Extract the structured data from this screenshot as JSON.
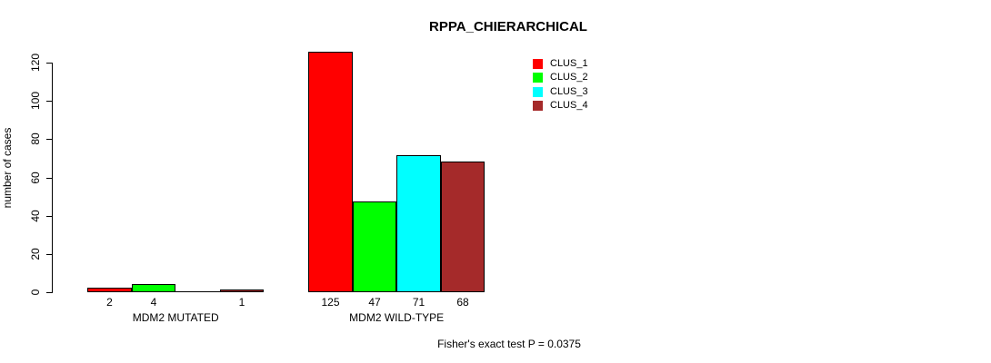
{
  "chart_data": {
    "type": "bar",
    "title": "RPPA_CHIERARCHICAL",
    "ylabel": "number of cases",
    "xlabel": "",
    "footer": "Fisher's exact test P = 0.0375",
    "ylim": [
      0,
      120
    ],
    "yticks": [
      0,
      20,
      40,
      60,
      80,
      100,
      120
    ],
    "grid": false,
    "legend_position": "inside-top-right",
    "categories": [
      "MDM2 MUTATED",
      "MDM2 WILD-TYPE"
    ],
    "series": [
      {
        "name": "CLUS_1",
        "color": "#FF0000",
        "values": [
          2,
          125
        ]
      },
      {
        "name": "CLUS_2",
        "color": "#00FF00",
        "values": [
          4,
          47
        ]
      },
      {
        "name": "CLUS_3",
        "color": "#00FFFF",
        "values": [
          0,
          71
        ]
      },
      {
        "name": "CLUS_4",
        "color": "#A52A2A",
        "values": [
          1,
          68
        ]
      }
    ],
    "bar_labels": [
      [
        "2",
        "4",
        "",
        "1"
      ],
      [
        "125",
        "47",
        "71",
        "68"
      ]
    ],
    "colors": {
      "bar_border": "#000000",
      "axis": "#000000",
      "text": "#000000",
      "background": "#FFFFFF"
    }
  }
}
